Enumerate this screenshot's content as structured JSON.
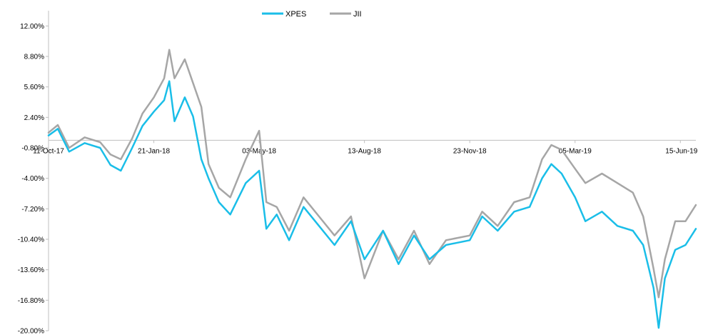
{
  "chart_data": {
    "type": "line",
    "title": "",
    "xlabel": "",
    "ylabel": "",
    "ylim": [
      -20,
      13.6
    ],
    "y_ticks": [
      "12.00%",
      "8.80%",
      "5.60%",
      "2.40%",
      "-0.80%",
      "-4.00%",
      "-7.20%",
      "-10.40%",
      "-13.60%",
      "-16.80%",
      "-20.00%"
    ],
    "x_ticks": [
      "11-Oct-17",
      "21-Jan-18",
      "03-May-18",
      "13-Aug-18",
      "23-Nov-18",
      "05-Mar-19",
      "15-Jun-19"
    ],
    "legend_position": "top-center",
    "series": [
      {
        "name": "XPES",
        "color": "#1ABEE8",
        "points": [
          [
            "2017-10-11",
            0.5
          ],
          [
            "2017-10-20",
            1.2
          ],
          [
            "2017-10-31",
            -1.2
          ],
          [
            "2017-11-15",
            -0.3
          ],
          [
            "2017-11-30",
            -0.8
          ],
          [
            "2017-12-10",
            -2.6
          ],
          [
            "2017-12-20",
            -3.2
          ],
          [
            "2017-12-31",
            -0.8
          ],
          [
            "2018-01-10",
            1.5
          ],
          [
            "2018-01-21",
            3.0
          ],
          [
            "2018-01-31",
            4.2
          ],
          [
            "2018-02-05",
            6.2
          ],
          [
            "2018-02-10",
            2.0
          ],
          [
            "2018-02-20",
            4.5
          ],
          [
            "2018-02-28",
            2.5
          ],
          [
            "2018-03-08",
            -2.0
          ],
          [
            "2018-03-15",
            -4.0
          ],
          [
            "2018-03-25",
            -6.5
          ],
          [
            "2018-04-05",
            -7.8
          ],
          [
            "2018-04-20",
            -4.5
          ],
          [
            "2018-05-03",
            -3.2
          ],
          [
            "2018-05-10",
            -9.3
          ],
          [
            "2018-05-20",
            -7.8
          ],
          [
            "2018-06-01",
            -10.5
          ],
          [
            "2018-06-15",
            -7.0
          ],
          [
            "2018-06-30",
            -9.0
          ],
          [
            "2018-07-15",
            -11.0
          ],
          [
            "2018-07-31",
            -8.5
          ],
          [
            "2018-08-13",
            -12.5
          ],
          [
            "2018-08-31",
            -9.5
          ],
          [
            "2018-09-15",
            -13.0
          ],
          [
            "2018-09-30",
            -10.0
          ],
          [
            "2018-10-15",
            -12.5
          ],
          [
            "2018-10-31",
            -11.0
          ],
          [
            "2018-11-23",
            -10.5
          ],
          [
            "2018-12-05",
            -8.0
          ],
          [
            "2018-12-20",
            -9.5
          ],
          [
            "2019-01-05",
            -7.5
          ],
          [
            "2019-01-20",
            -7.0
          ],
          [
            "2019-02-01",
            -4.0
          ],
          [
            "2019-02-10",
            -2.5
          ],
          [
            "2019-02-20",
            -3.5
          ],
          [
            "2019-03-05",
            -6.0
          ],
          [
            "2019-03-15",
            -8.5
          ],
          [
            "2019-03-31",
            -7.5
          ],
          [
            "2019-04-15",
            -9.0
          ],
          [
            "2019-04-30",
            -9.5
          ],
          [
            "2019-05-10",
            -11.0
          ],
          [
            "2019-05-20",
            -15.5
          ],
          [
            "2019-05-25",
            -19.7
          ],
          [
            "2019-05-31",
            -14.5
          ],
          [
            "2019-06-10",
            -11.5
          ],
          [
            "2019-06-20",
            -11.0
          ],
          [
            "2019-06-30",
            -9.3
          ]
        ]
      },
      {
        "name": "JII",
        "color": "#A6A6A6",
        "points": [
          [
            "2017-10-11",
            0.8
          ],
          [
            "2017-10-20",
            1.6
          ],
          [
            "2017-10-31",
            -0.8
          ],
          [
            "2017-11-15",
            0.3
          ],
          [
            "2017-11-30",
            -0.2
          ],
          [
            "2017-12-10",
            -1.5
          ],
          [
            "2017-12-20",
            -2.0
          ],
          [
            "2017-12-31",
            0.2
          ],
          [
            "2018-01-10",
            2.8
          ],
          [
            "2018-01-21",
            4.5
          ],
          [
            "2018-01-31",
            6.5
          ],
          [
            "2018-02-05",
            9.5
          ],
          [
            "2018-02-10",
            6.5
          ],
          [
            "2018-02-20",
            8.5
          ],
          [
            "2018-02-28",
            6.0
          ],
          [
            "2018-03-08",
            3.5
          ],
          [
            "2018-03-15",
            -2.5
          ],
          [
            "2018-03-25",
            -5.0
          ],
          [
            "2018-04-05",
            -6.0
          ],
          [
            "2018-04-20",
            -2.0
          ],
          [
            "2018-05-03",
            1.0
          ],
          [
            "2018-05-10",
            -6.5
          ],
          [
            "2018-05-20",
            -7.0
          ],
          [
            "2018-06-01",
            -9.5
          ],
          [
            "2018-06-15",
            -6.0
          ],
          [
            "2018-06-30",
            -8.0
          ],
          [
            "2018-07-15",
            -10.0
          ],
          [
            "2018-07-31",
            -8.0
          ],
          [
            "2018-08-13",
            -14.5
          ],
          [
            "2018-08-31",
            -9.5
          ],
          [
            "2018-09-15",
            -12.5
          ],
          [
            "2018-09-30",
            -9.5
          ],
          [
            "2018-10-15",
            -13.0
          ],
          [
            "2018-10-31",
            -10.5
          ],
          [
            "2018-11-23",
            -10.0
          ],
          [
            "2018-12-05",
            -7.5
          ],
          [
            "2018-12-20",
            -9.0
          ],
          [
            "2019-01-05",
            -6.5
          ],
          [
            "2019-01-20",
            -6.0
          ],
          [
            "2019-02-01",
            -2.0
          ],
          [
            "2019-02-10",
            -0.5
          ],
          [
            "2019-02-20",
            -1.0
          ],
          [
            "2019-03-05",
            -3.0
          ],
          [
            "2019-03-15",
            -4.5
          ],
          [
            "2019-03-31",
            -3.5
          ],
          [
            "2019-04-15",
            -4.5
          ],
          [
            "2019-04-30",
            -5.5
          ],
          [
            "2019-05-10",
            -8.0
          ],
          [
            "2019-05-20",
            -13.5
          ],
          [
            "2019-05-25",
            -16.5
          ],
          [
            "2019-05-31",
            -12.5
          ],
          [
            "2019-06-10",
            -8.5
          ],
          [
            "2019-06-20",
            -8.5
          ],
          [
            "2019-06-30",
            -6.8
          ]
        ]
      }
    ]
  }
}
